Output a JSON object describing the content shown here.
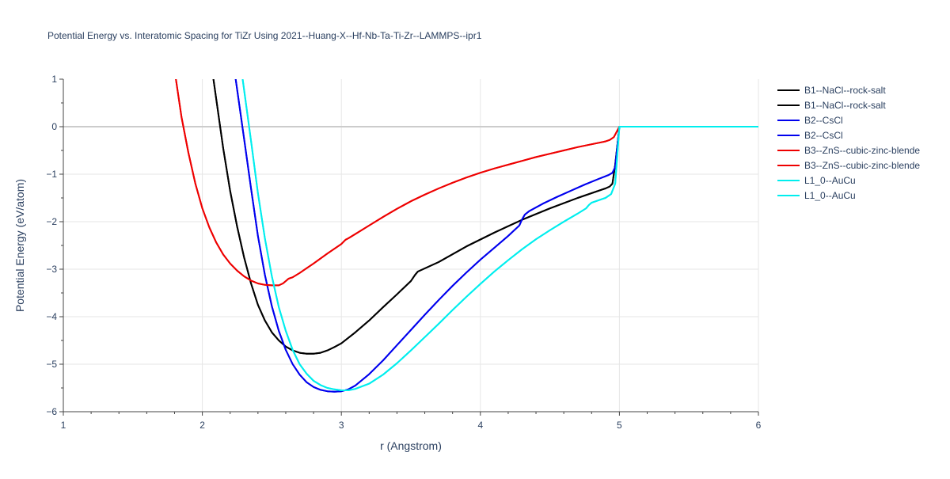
{
  "chart_data": {
    "type": "line",
    "title": "Potential Energy vs. Interatomic Spacing for TiZr Using 2021--Huang-X--Hf-Nb-Ta-Ti-Zr--LAMMPS--ipr1",
    "xlabel": "r (Angstrom)",
    "ylabel": "Potential Energy (eV/atom)",
    "xlim": [
      1,
      6
    ],
    "ylim": [
      -6,
      1
    ],
    "xticks": [
      1,
      2,
      3,
      4,
      5,
      6
    ],
    "yticks": [
      1,
      0,
      -1,
      -2,
      -3,
      -4,
      -5,
      -6
    ],
    "grid": true,
    "legend_position": "top-right",
    "series": [
      {
        "name": "B1--NaCl--rock-salt",
        "color": "#000000",
        "x": [
          2.08,
          2.15,
          2.2,
          2.25,
          2.3,
          2.35,
          2.4,
          2.45,
          2.5,
          2.55,
          2.6,
          2.65,
          2.7,
          2.75,
          2.8,
          2.85,
          2.9,
          2.95,
          3.0,
          3.1,
          3.2,
          3.3,
          3.4,
          3.5,
          3.53,
          3.55,
          3.7,
          3.9,
          4.1,
          4.3,
          4.5,
          4.7,
          4.9,
          4.93,
          4.95,
          4.97,
          5.0,
          6.0
        ],
        "y": [
          1.0,
          -0.45,
          -1.35,
          -2.1,
          -2.75,
          -3.3,
          -3.75,
          -4.08,
          -4.33,
          -4.5,
          -4.63,
          -4.71,
          -4.76,
          -4.78,
          -4.78,
          -4.76,
          -4.71,
          -4.64,
          -4.56,
          -4.33,
          -4.08,
          -3.8,
          -3.53,
          -3.25,
          -3.12,
          -3.05,
          -2.85,
          -2.52,
          -2.23,
          -1.96,
          -1.72,
          -1.5,
          -1.3,
          -1.26,
          -1.2,
          -0.8,
          0.0,
          0.0
        ]
      },
      {
        "name": "B1--NaCl--rock-salt",
        "color": "#000000",
        "x": [
          2.08,
          2.15,
          2.2,
          2.25,
          2.3,
          2.35,
          2.4,
          2.45,
          2.5,
          2.55,
          2.6,
          2.65,
          2.7,
          2.75,
          2.8,
          2.85,
          2.9,
          2.95,
          3.0,
          3.1,
          3.2,
          3.3,
          3.4,
          3.5,
          3.53,
          3.55,
          3.7,
          3.9,
          4.1,
          4.3,
          4.5,
          4.7,
          4.9,
          4.93,
          4.95,
          4.97,
          5.0,
          6.0
        ],
        "y": [
          1.0,
          -0.45,
          -1.35,
          -2.1,
          -2.75,
          -3.3,
          -3.75,
          -4.08,
          -4.33,
          -4.5,
          -4.63,
          -4.71,
          -4.76,
          -4.78,
          -4.78,
          -4.76,
          -4.71,
          -4.64,
          -4.56,
          -4.33,
          -4.08,
          -3.8,
          -3.53,
          -3.25,
          -3.12,
          -3.05,
          -2.85,
          -2.52,
          -2.23,
          -1.96,
          -1.72,
          -1.5,
          -1.3,
          -1.26,
          -1.2,
          -0.8,
          0.0,
          0.0
        ]
      },
      {
        "name": "B2--CsCl",
        "color": "#0000ee",
        "x": [
          2.24,
          2.3,
          2.35,
          2.4,
          2.45,
          2.5,
          2.55,
          2.6,
          2.65,
          2.7,
          2.75,
          2.8,
          2.85,
          2.9,
          2.95,
          3.0,
          3.05,
          3.1,
          3.2,
          3.3,
          3.4,
          3.5,
          3.6,
          3.7,
          3.8,
          3.9,
          4.0,
          4.1,
          4.2,
          4.28,
          4.3,
          4.32,
          4.35,
          4.45,
          4.55,
          4.65,
          4.75,
          4.85,
          4.92,
          4.95,
          4.97,
          5.0,
          6.0
        ],
        "y": [
          1.0,
          -0.25,
          -1.3,
          -2.3,
          -3.12,
          -3.78,
          -4.3,
          -4.7,
          -5.0,
          -5.22,
          -5.38,
          -5.48,
          -5.54,
          -5.57,
          -5.58,
          -5.57,
          -5.53,
          -5.45,
          -5.21,
          -4.92,
          -4.6,
          -4.28,
          -3.96,
          -3.65,
          -3.35,
          -3.07,
          -2.8,
          -2.55,
          -2.3,
          -2.08,
          -1.95,
          -1.85,
          -1.78,
          -1.62,
          -1.48,
          -1.35,
          -1.22,
          -1.1,
          -1.02,
          -0.97,
          -0.85,
          0.0,
          0.0
        ]
      },
      {
        "name": "B2--CsCl",
        "color": "#0000ee",
        "x": [
          2.24,
          2.3,
          2.35,
          2.4,
          2.45,
          2.5,
          2.55,
          2.6,
          2.65,
          2.7,
          2.75,
          2.8,
          2.85,
          2.9,
          2.95,
          3.0,
          3.05,
          3.1,
          3.2,
          3.3,
          3.4,
          3.5,
          3.6,
          3.7,
          3.8,
          3.9,
          4.0,
          4.1,
          4.2,
          4.28,
          4.3,
          4.32,
          4.35,
          4.45,
          4.55,
          4.65,
          4.75,
          4.85,
          4.92,
          4.95,
          4.97,
          5.0,
          6.0
        ],
        "y": [
          1.0,
          -0.25,
          -1.3,
          -2.3,
          -3.12,
          -3.78,
          -4.3,
          -4.7,
          -5.0,
          -5.22,
          -5.38,
          -5.48,
          -5.54,
          -5.57,
          -5.58,
          -5.57,
          -5.53,
          -5.45,
          -5.21,
          -4.92,
          -4.6,
          -4.28,
          -3.96,
          -3.65,
          -3.35,
          -3.07,
          -2.8,
          -2.55,
          -2.3,
          -2.08,
          -1.95,
          -1.85,
          -1.78,
          -1.62,
          -1.48,
          -1.35,
          -1.22,
          -1.1,
          -1.02,
          -0.97,
          -0.85,
          0.0,
          0.0
        ]
      },
      {
        "name": "B3--ZnS--cubic-zinc-blende",
        "color": "#ee0000",
        "x": [
          1.81,
          1.85,
          1.9,
          1.95,
          2.0,
          2.05,
          2.1,
          2.15,
          2.2,
          2.25,
          2.3,
          2.35,
          2.4,
          2.45,
          2.5,
          2.55,
          2.58,
          2.6,
          2.62,
          2.65,
          2.7,
          2.8,
          2.9,
          3.0,
          3.03,
          3.05,
          3.1,
          3.2,
          3.3,
          3.4,
          3.5,
          3.6,
          3.7,
          3.8,
          3.9,
          4.0,
          4.1,
          4.2,
          4.3,
          4.4,
          4.5,
          4.6,
          4.7,
          4.8,
          4.9,
          4.93,
          4.96,
          5.0,
          6.0
        ],
        "y": [
          1.0,
          0.2,
          -0.55,
          -1.2,
          -1.72,
          -2.12,
          -2.44,
          -2.69,
          -2.88,
          -3.03,
          -3.15,
          -3.24,
          -3.3,
          -3.33,
          -3.34,
          -3.34,
          -3.3,
          -3.25,
          -3.2,
          -3.17,
          -3.08,
          -2.88,
          -2.67,
          -2.47,
          -2.38,
          -2.35,
          -2.26,
          -2.08,
          -1.9,
          -1.73,
          -1.57,
          -1.43,
          -1.3,
          -1.18,
          -1.07,
          -0.97,
          -0.88,
          -0.8,
          -0.72,
          -0.64,
          -0.57,
          -0.5,
          -0.43,
          -0.37,
          -0.31,
          -0.28,
          -0.22,
          0.0,
          0.0
        ]
      },
      {
        "name": "B3--ZnS--cubic-zinc-blende",
        "color": "#ee0000",
        "x": [
          1.81,
          1.85,
          1.9,
          1.95,
          2.0,
          2.05,
          2.1,
          2.15,
          2.2,
          2.25,
          2.3,
          2.35,
          2.4,
          2.45,
          2.5,
          2.55,
          2.58,
          2.6,
          2.62,
          2.65,
          2.7,
          2.8,
          2.9,
          3.0,
          3.03,
          3.05,
          3.1,
          3.2,
          3.3,
          3.4,
          3.5,
          3.6,
          3.7,
          3.8,
          3.9,
          4.0,
          4.1,
          4.2,
          4.3,
          4.4,
          4.5,
          4.6,
          4.7,
          4.8,
          4.9,
          4.93,
          4.96,
          5.0,
          6.0
        ],
        "y": [
          1.0,
          0.2,
          -0.55,
          -1.2,
          -1.72,
          -2.12,
          -2.44,
          -2.69,
          -2.88,
          -3.03,
          -3.15,
          -3.24,
          -3.3,
          -3.33,
          -3.34,
          -3.34,
          -3.3,
          -3.25,
          -3.2,
          -3.17,
          -3.08,
          -2.88,
          -2.67,
          -2.47,
          -2.38,
          -2.35,
          -2.26,
          -2.08,
          -1.9,
          -1.73,
          -1.57,
          -1.43,
          -1.3,
          -1.18,
          -1.07,
          -0.97,
          -0.88,
          -0.8,
          -0.72,
          -0.64,
          -0.57,
          -0.5,
          -0.43,
          -0.37,
          -0.31,
          -0.28,
          -0.22,
          0.0,
          0.0
        ]
      },
      {
        "name": "L1_0--AuCu",
        "color": "#00eeee",
        "x": [
          2.29,
          2.35,
          2.4,
          2.45,
          2.5,
          2.55,
          2.6,
          2.65,
          2.7,
          2.75,
          2.8,
          2.85,
          2.9,
          2.95,
          3.0,
          3.05,
          3.1,
          3.2,
          3.3,
          3.4,
          3.5,
          3.6,
          3.7,
          3.8,
          3.9,
          4.0,
          4.1,
          4.2,
          4.3,
          4.4,
          4.5,
          4.6,
          4.7,
          4.76,
          4.78,
          4.8,
          4.9,
          4.94,
          4.97,
          5.0,
          6.0
        ],
        "y": [
          1.0,
          -0.3,
          -1.4,
          -2.35,
          -3.15,
          -3.8,
          -4.3,
          -4.7,
          -5.0,
          -5.2,
          -5.35,
          -5.44,
          -5.5,
          -5.53,
          -5.55,
          -5.55,
          -5.52,
          -5.41,
          -5.22,
          -4.98,
          -4.71,
          -4.43,
          -4.15,
          -3.86,
          -3.58,
          -3.31,
          -3.05,
          -2.81,
          -2.58,
          -2.37,
          -2.18,
          -2.0,
          -1.83,
          -1.72,
          -1.65,
          -1.6,
          -1.5,
          -1.42,
          -1.2,
          0.0,
          0.0
        ]
      },
      {
        "name": "L1_0--AuCu",
        "color": "#00eeee",
        "x": [
          2.29,
          2.35,
          2.4,
          2.45,
          2.5,
          2.55,
          2.6,
          2.65,
          2.7,
          2.75,
          2.8,
          2.85,
          2.9,
          2.95,
          3.0,
          3.05,
          3.1,
          3.2,
          3.3,
          3.4,
          3.5,
          3.6,
          3.7,
          3.8,
          3.9,
          4.0,
          4.1,
          4.2,
          4.3,
          4.4,
          4.5,
          4.6,
          4.7,
          4.76,
          4.78,
          4.8,
          4.9,
          4.94,
          4.97,
          5.0,
          6.0
        ],
        "y": [
          1.0,
          -0.3,
          -1.4,
          -2.35,
          -3.15,
          -3.8,
          -4.3,
          -4.7,
          -5.0,
          -5.2,
          -5.35,
          -5.44,
          -5.5,
          -5.53,
          -5.55,
          -5.55,
          -5.52,
          -5.41,
          -5.22,
          -4.98,
          -4.71,
          -4.43,
          -4.15,
          -3.86,
          -3.58,
          -3.31,
          -3.05,
          -2.81,
          -2.58,
          -2.37,
          -2.18,
          -2.0,
          -1.83,
          -1.72,
          -1.65,
          -1.6,
          -1.5,
          -1.42,
          -1.2,
          0.0,
          0.0
        ]
      }
    ]
  }
}
